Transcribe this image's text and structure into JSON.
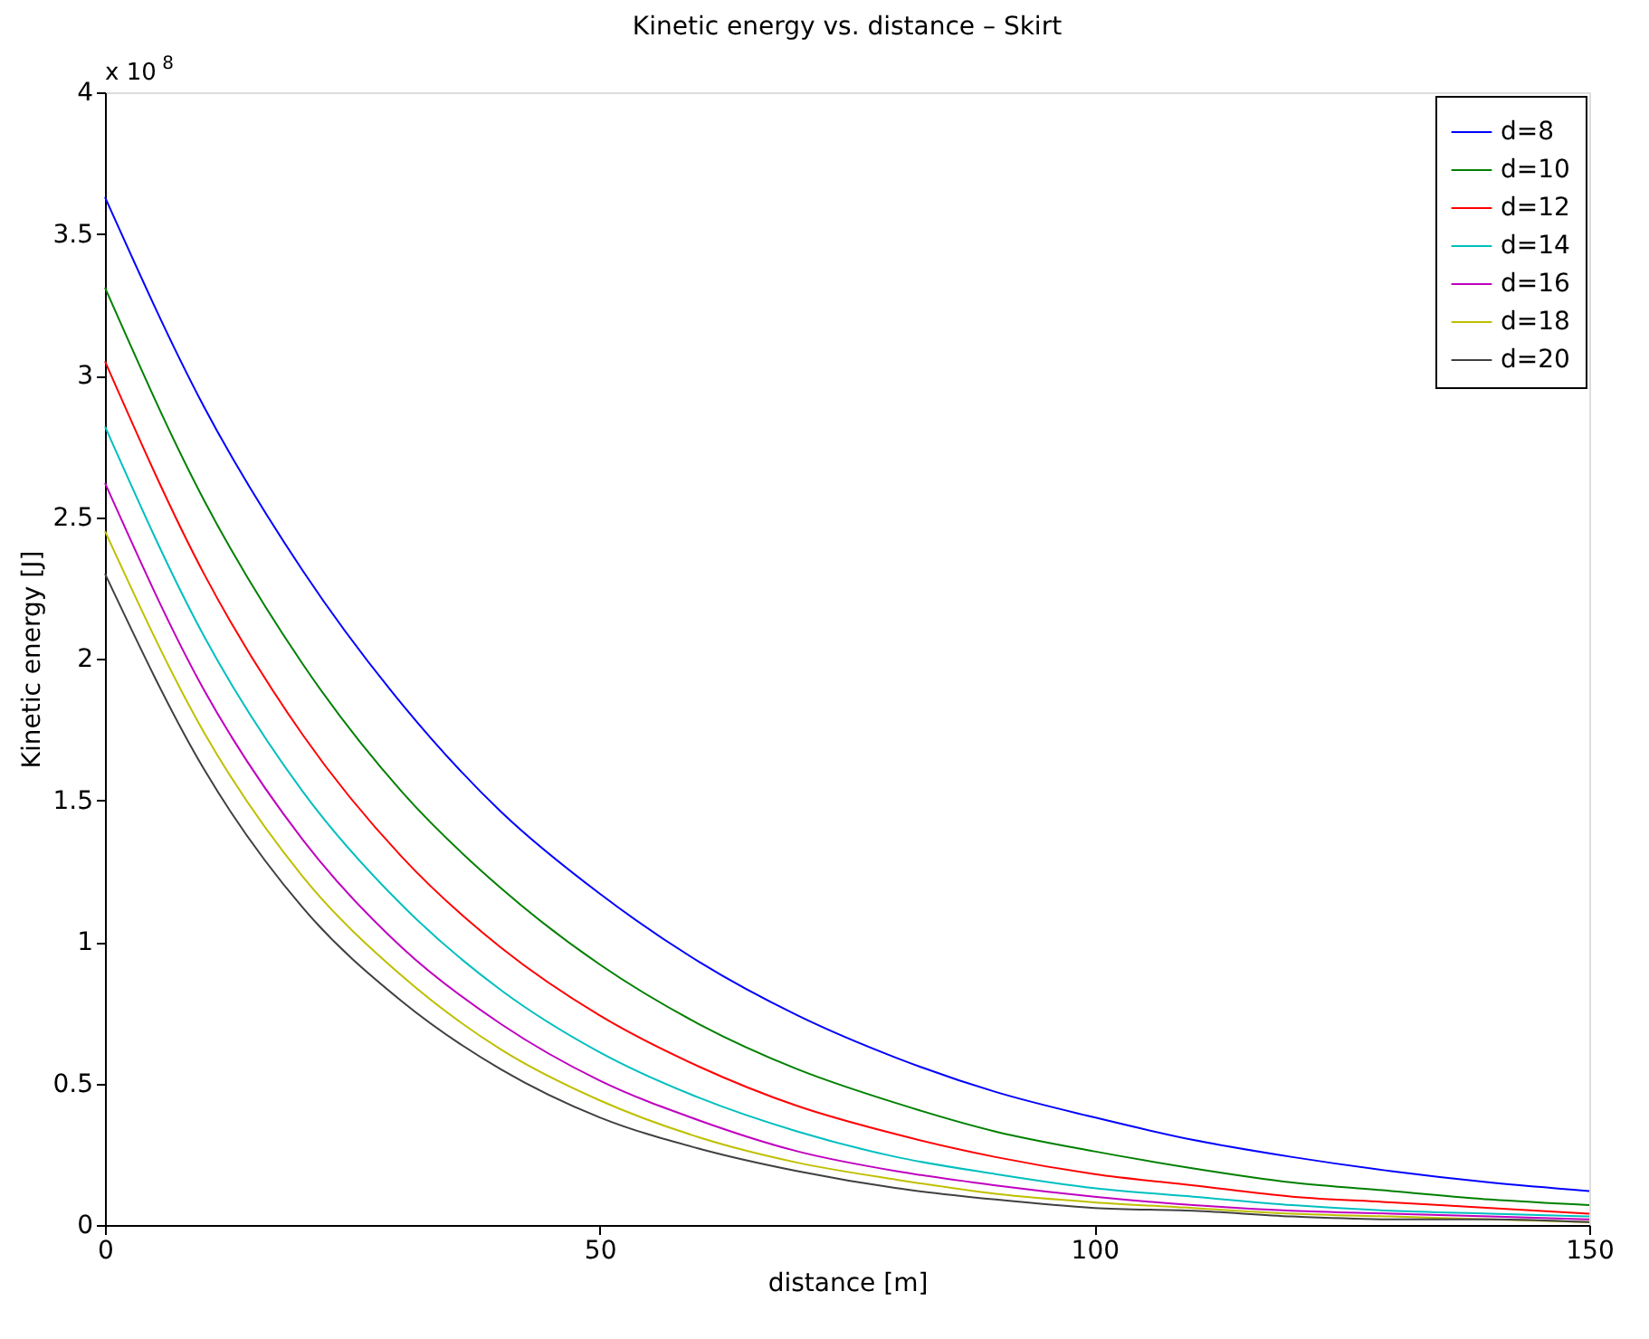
{
  "chart_data": {
    "type": "line",
    "title": "Kinetic energy vs. distance – Skirt",
    "xlabel": "distance [m]",
    "ylabel": "Kinetic energy [J]",
    "annotations": [
      "x 10$^{8}$"
    ],
    "x": [
      0,
      10,
      20,
      30,
      40,
      50,
      60,
      70,
      80,
      90,
      100,
      110,
      120,
      130,
      140,
      150
    ],
    "series": [
      {
        "name": "d=8",
        "color": "#0000ff",
        "values": [
          3.63,
          2.89,
          2.31,
          1.84,
          1.46,
          1.17,
          0.93,
          0.74,
          0.59,
          0.47,
          0.38,
          0.3,
          0.24,
          0.19,
          0.15,
          0.12
        ]
      },
      {
        "name": "d=10",
        "color": "#008000",
        "values": [
          3.31,
          2.56,
          1.98,
          1.53,
          1.19,
          0.92,
          0.71,
          0.55,
          0.43,
          0.33,
          0.26,
          0.2,
          0.15,
          0.12,
          0.09,
          0.07
        ]
      },
      {
        "name": "d=12",
        "color": "#ff0000",
        "values": [
          3.05,
          2.3,
          1.73,
          1.3,
          0.98,
          0.74,
          0.56,
          0.42,
          0.32,
          0.24,
          0.18,
          0.14,
          0.1,
          0.08,
          0.06,
          0.04
        ]
      },
      {
        "name": "d=14",
        "color": "#00bfbf",
        "values": [
          2.82,
          2.08,
          1.53,
          1.13,
          0.83,
          0.61,
          0.45,
          0.33,
          0.24,
          0.18,
          0.13,
          0.1,
          0.07,
          0.05,
          0.04,
          0.03
        ]
      },
      {
        "name": "d=16",
        "color": "#bf00bf",
        "values": [
          2.62,
          1.89,
          1.36,
          0.98,
          0.71,
          0.51,
          0.37,
          0.26,
          0.19,
          0.14,
          0.1,
          0.07,
          0.05,
          0.04,
          0.03,
          0.02
        ]
      },
      {
        "name": "d=18",
        "color": "#bfbf00",
        "values": [
          2.45,
          1.74,
          1.23,
          0.88,
          0.62,
          0.44,
          0.31,
          0.22,
          0.16,
          0.11,
          0.08,
          0.06,
          0.04,
          0.03,
          0.02,
          0.01
        ]
      },
      {
        "name": "d=20",
        "color": "#404040",
        "values": [
          2.3,
          1.61,
          1.12,
          0.79,
          0.55,
          0.38,
          0.27,
          0.19,
          0.13,
          0.09,
          0.06,
          0.05,
          0.03,
          0.02,
          0.02,
          0.01
        ]
      }
    ],
    "xlim": [
      0,
      150
    ],
    "xticks": [
      0,
      50,
      100,
      150
    ],
    "ylim": [
      0,
      4
    ],
    "yticks": [
      0,
      0.5,
      1,
      1.5,
      2,
      2.5,
      3,
      3.5,
      4
    ],
    "grid": false,
    "legend": "top right",
    "marker": "none",
    "line_style": "solid"
  }
}
